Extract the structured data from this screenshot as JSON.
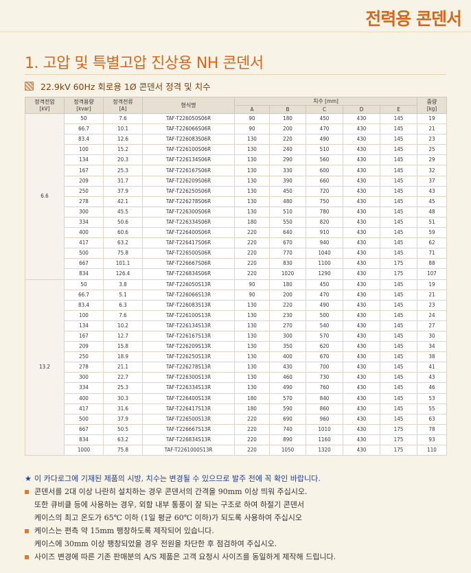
{
  "header": {
    "category": "전력용 콘덴서"
  },
  "section": {
    "title": "1. 고압 및 특별고압 진상용 NH 콘덴서",
    "subtitle": "22.9kV 60Hz 회로용 1Ø 콘덴서 정격 및 치수"
  },
  "table": {
    "headers": {
      "voltage": "정격전압\n[kV]",
      "capacity": "정격용량\n[kvar]",
      "current": "정격전류\n[A]",
      "model": "형식명",
      "dims": "치수 [mm]",
      "dim_cols": [
        "A",
        "B",
        "C",
        "D",
        "E"
      ],
      "weight": "중량\n[kg]"
    },
    "groups": [
      {
        "voltage": "6.6",
        "rows": [
          [
            "50",
            "7.6",
            "TAF-T226050S06R",
            "90",
            "180",
            "450",
            "430",
            "145",
            "19"
          ],
          [
            "66.7",
            "10.1",
            "TAF-T226066S06R",
            "90",
            "200",
            "470",
            "430",
            "145",
            "21"
          ],
          [
            "83.4",
            "12.6",
            "TAF-T226083S06R",
            "130",
            "220",
            "490",
            "430",
            "145",
            "23"
          ],
          [
            "100",
            "15.2",
            "TAF-T226100S06R",
            "130",
            "240",
            "510",
            "430",
            "145",
            "25"
          ],
          [
            "134",
            "20.3",
            "TAF-T226134S06R",
            "130",
            "290",
            "560",
            "430",
            "145",
            "29"
          ],
          [
            "167",
            "25.3",
            "TAF-T226167S06R",
            "130",
            "330",
            "600",
            "430",
            "145",
            "32"
          ],
          [
            "209",
            "31.7",
            "TAF-T226209S06R",
            "130",
            "390",
            "660",
            "430",
            "145",
            "37"
          ],
          [
            "250",
            "37.9",
            "TAF-T226250S06R",
            "130",
            "450",
            "720",
            "430",
            "145",
            "43"
          ],
          [
            "278",
            "42.1",
            "TAF-T226278S06R",
            "130",
            "480",
            "750",
            "430",
            "145",
            "45"
          ],
          [
            "300",
            "45.5",
            "TAF-T226300S06R",
            "130",
            "510",
            "780",
            "430",
            "145",
            "48"
          ],
          [
            "334",
            "50.6",
            "TAF-T226334S06R",
            "180",
            "550",
            "820",
            "430",
            "145",
            "51"
          ],
          [
            "400",
            "60.6",
            "TAF-T226400S06R",
            "220",
            "640",
            "910",
            "430",
            "145",
            "59"
          ],
          [
            "417",
            "63.2",
            "TAF-T226417S06R",
            "220",
            "670",
            "940",
            "430",
            "145",
            "62"
          ],
          [
            "500",
            "75.8",
            "TAF-T226500S06R",
            "220",
            "770",
            "1040",
            "430",
            "145",
            "71"
          ],
          [
            "667",
            "101.1",
            "TAF-T226667S06R",
            "220",
            "830",
            "1100",
            "430",
            "175",
            "88"
          ],
          [
            "834",
            "126.4",
            "TAF-T226834S06R",
            "220",
            "1020",
            "1290",
            "430",
            "175",
            "107"
          ]
        ]
      },
      {
        "voltage": "13.2",
        "rows": [
          [
            "50",
            "3.8",
            "TAF-T226050S13R",
            "90",
            "180",
            "450",
            "430",
            "145",
            "19"
          ],
          [
            "66.7",
            "5.1",
            "TAF-T226066S13R",
            "90",
            "200",
            "470",
            "430",
            "145",
            "21"
          ],
          [
            "83.4",
            "6.3",
            "TAF-T226083S13R",
            "130",
            "220",
            "490",
            "430",
            "145",
            "23"
          ],
          [
            "100",
            "7.6",
            "TAF-T226100S13R",
            "130",
            "230",
            "500",
            "430",
            "145",
            "24"
          ],
          [
            "134",
            "10.2",
            "TAF-T226134S13R",
            "130",
            "270",
            "540",
            "430",
            "145",
            "27"
          ],
          [
            "167",
            "12.7",
            "TAF-T226167S13R",
            "130",
            "300",
            "570",
            "430",
            "145",
            "30"
          ],
          [
            "209",
            "15.8",
            "TAF-T226209S13R",
            "130",
            "350",
            "620",
            "430",
            "145",
            "34"
          ],
          [
            "250",
            "18.9",
            "TAF-T226250S13R",
            "130",
            "400",
            "670",
            "430",
            "145",
            "38"
          ],
          [
            "278",
            "21.1",
            "TAF-T226278S13R",
            "130",
            "430",
            "700",
            "430",
            "145",
            "41"
          ],
          [
            "300",
            "22.7",
            "TAF-T226300S13R",
            "130",
            "460",
            "730",
            "430",
            "145",
            "43"
          ],
          [
            "334",
            "25.3",
            "TAF-T226334S13R",
            "130",
            "490",
            "760",
            "430",
            "145",
            "46"
          ],
          [
            "400",
            "30.3",
            "TAF-T226400S13R",
            "180",
            "570",
            "840",
            "430",
            "145",
            "53"
          ],
          [
            "417",
            "31.6",
            "TAF-T226417S13R",
            "180",
            "590",
            "860",
            "430",
            "145",
            "55"
          ],
          [
            "500",
            "37.9",
            "TAF-T226500S13R",
            "220",
            "690",
            "960",
            "430",
            "145",
            "63"
          ],
          [
            "667",
            "50.5",
            "TAF-T226667S13R",
            "220",
            "740",
            "1010",
            "430",
            "175",
            "78"
          ],
          [
            "834",
            "63.2",
            "TAF-T226834S13R",
            "220",
            "890",
            "1160",
            "430",
            "175",
            "93"
          ],
          [
            "1000",
            "75.8",
            "TAF-T2261000S13R",
            "220",
            "1050",
            "1320",
            "430",
            "175",
            "110"
          ]
        ]
      }
    ]
  },
  "notes": {
    "star": "이 카다로그에 기재된 제품의 시방, 치수는 변경될 수 있으므로 발주 전에 꼭 확인 바랍니다.",
    "items": [
      {
        "lines": [
          "콘덴서를 2대 이상 나란히 설치하는 경우 콘덴서의 간격을 90mm 이상 띄워 주십시오.",
          "또한 큐비클 등에 사용하는 경우, 외함 내부 통풍이 잘 되는 구조로 하여 하절기 콘덴서",
          "케이스의 최고 온도가 65℃ 이하 (1일 평균 60℃ 이하)가 되도록 사용하여 주십시오"
        ]
      },
      {
        "lines": [
          "케이스는 편측 약 15mm 팽창하도록 제작되어 있습니다.",
          "케이스에 30mm 이상 팽창되었을 경우 전원을 차단한 후 점검하여 주십시오."
        ]
      },
      {
        "lines": [
          "사이즈 변경에 따른 기존 판매분의 A/S 제품은 고객 요청시 사이즈를 동일하게 제작해 드립니다."
        ]
      }
    ]
  }
}
